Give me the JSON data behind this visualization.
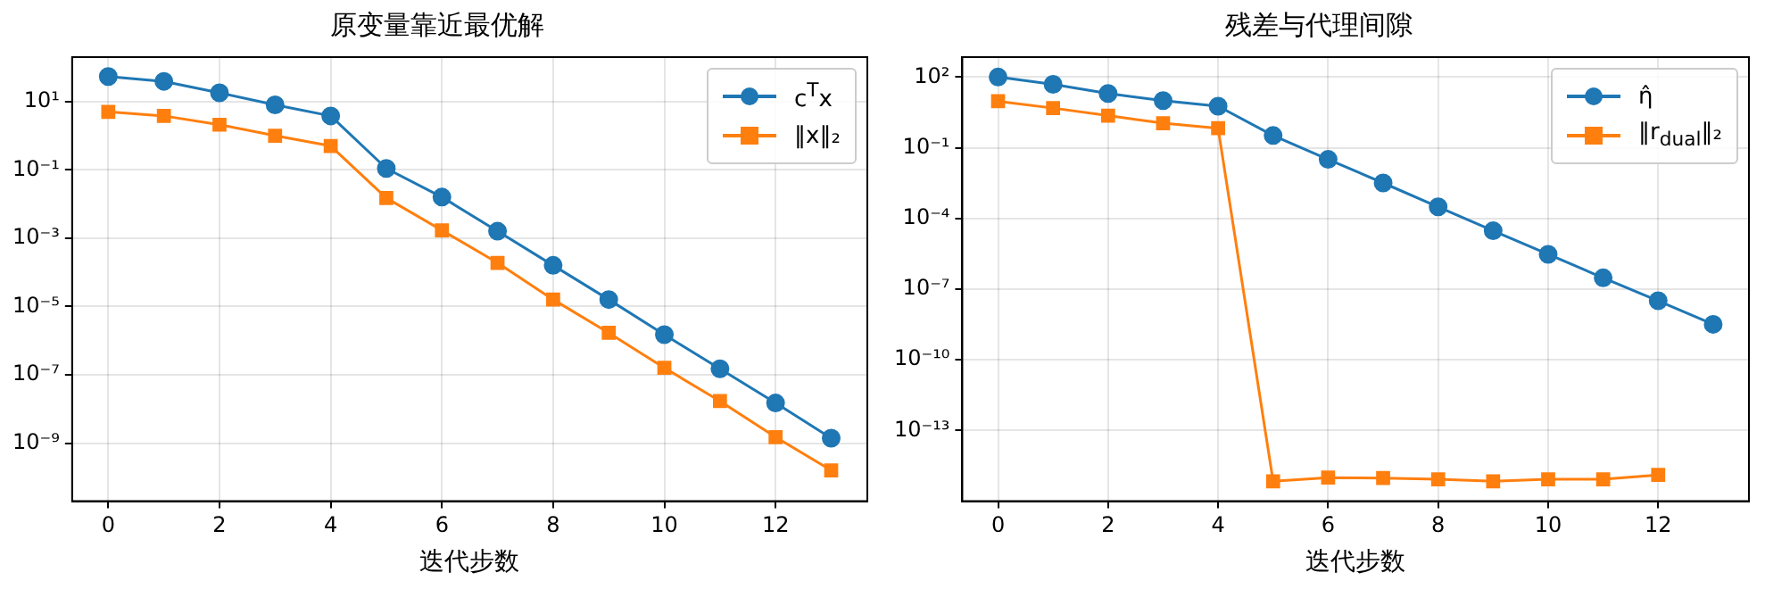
{
  "chart_data": [
    {
      "type": "line",
      "title": "原变量靠近最优解",
      "xlabel": "迭代步数",
      "x": [
        0,
        1,
        2,
        3,
        4,
        5,
        6,
        7,
        8,
        9,
        10,
        11,
        12,
        13
      ],
      "log": "y",
      "grid": true,
      "legend": "top right",
      "xlim": [
        -0.65,
        13.65
      ],
      "xticks": [
        0,
        2,
        4,
        6,
        8,
        10,
        12
      ],
      "ylim": [
        2e-11,
        200
      ],
      "yticks": [
        {
          "value": 1e-09,
          "label": "10⁻⁹"
        },
        {
          "value": 1e-07,
          "label": "10⁻⁷"
        },
        {
          "value": 1e-05,
          "label": "10⁻⁵"
        },
        {
          "value": 0.001,
          "label": "10⁻³"
        },
        {
          "value": 0.1,
          "label": "10⁻¹"
        },
        {
          "value": 10,
          "label": "10¹"
        }
      ],
      "series": [
        {
          "name": "c$^{T}$x",
          "color": "#1f77b4",
          "marker": "circle",
          "values": [
            54,
            39,
            18,
            8,
            3.8,
            0.11,
            0.016,
            0.0016,
            0.00016,
            1.6e-05,
            1.5e-06,
            1.5e-07,
            1.5e-08,
            1.4e-09
          ]
        },
        {
          "name": "‖x‖₂",
          "color": "#ff7f0e",
          "marker": "square",
          "values": [
            5,
            3.8,
            2.1,
            1,
            0.5,
            0.015,
            0.0017,
            0.00019,
            1.6e-05,
            1.7e-06,
            1.6e-07,
            1.7e-08,
            1.5e-09,
            1.6e-10
          ]
        }
      ]
    },
    {
      "type": "line",
      "title": "残差与代理间隙",
      "xlabel": "迭代步数",
      "x": [
        0,
        1,
        2,
        3,
        4,
        5,
        6,
        7,
        8,
        9,
        10,
        11,
        12,
        13
      ],
      "log": "y",
      "grid": true,
      "legend": "top right",
      "xlim": [
        -0.65,
        13.65
      ],
      "xticks": [
        0,
        2,
        4,
        6,
        8,
        10,
        12
      ],
      "ylim": [
        1e-16,
        700
      ],
      "yticks": [
        {
          "value": 1e-13,
          "label": "10⁻¹³"
        },
        {
          "value": 1e-10,
          "label": "10⁻¹⁰"
        },
        {
          "value": 1e-07,
          "label": "10⁻⁷"
        },
        {
          "value": 0.0001,
          "label": "10⁻⁴"
        },
        {
          "value": 0.1,
          "label": "10⁻¹"
        },
        {
          "value": 100,
          "label": "10²"
        }
      ],
      "series": [
        {
          "name": "η̂",
          "color": "#1f77b4",
          "marker": "circle",
          "values": [
            100,
            49,
            20,
            10,
            5.8,
            0.33,
            0.032,
            0.0032,
            0.00031,
            3e-05,
            3e-06,
            3e-07,
            3.2e-08,
            3.2e-09
          ]
        },
        {
          "name": "‖r$_{dual}$‖₂",
          "color": "#ff7f0e",
          "marker": "square",
          "values": [
            9.4,
            4.8,
            2.3,
            1.1,
            0.67,
            7e-16,
            1e-15,
            9.6e-16,
            8.5e-16,
            7e-16,
            8.5e-16,
            8.5e-16,
            1.3e-15,
            null
          ]
        }
      ]
    }
  ]
}
